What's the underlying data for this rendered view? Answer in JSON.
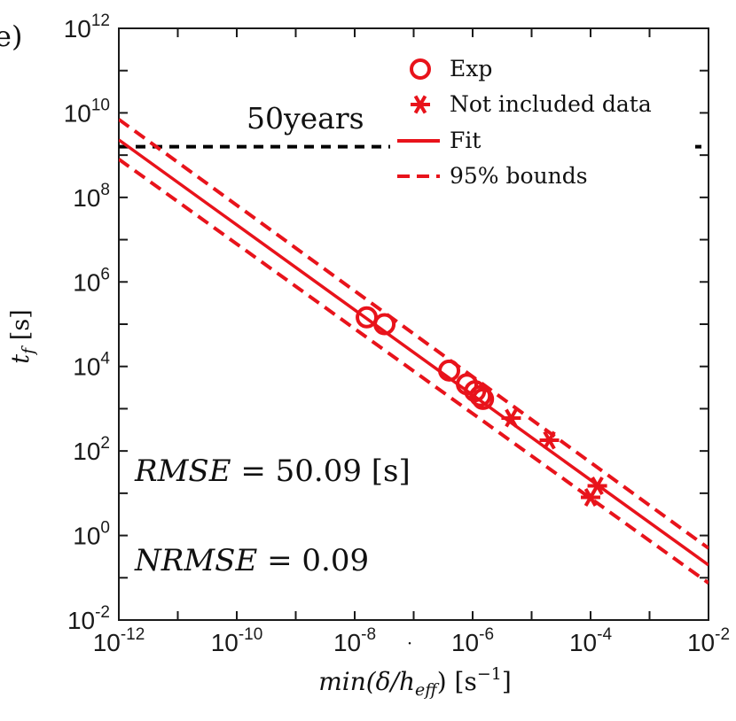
{
  "chart_data": {
    "type": "scatter",
    "panel_label": "e)",
    "xscale": "log",
    "yscale": "log",
    "xlim": [
      1e-12,
      0.01
    ],
    "ylim": [
      0.01,
      1000000000000.0
    ],
    "x_ticks": [
      {
        "base": "10",
        "exp": "-12"
      },
      {
        "base": "10",
        "exp": "-10"
      },
      {
        "base": "10",
        "exp": "-8"
      },
      {
        "base": "10",
        "exp": "-6"
      },
      {
        "base": "10",
        "exp": "-4"
      },
      {
        "base": "10",
        "exp": "-2"
      }
    ],
    "y_ticks": [
      {
        "base": "10",
        "exp": "-2"
      },
      {
        "base": "10",
        "exp": "0"
      },
      {
        "base": "10",
        "exp": "2"
      },
      {
        "base": "10",
        "exp": "4"
      },
      {
        "base": "10",
        "exp": "6"
      },
      {
        "base": "10",
        "exp": "8"
      },
      {
        "base": "10",
        "exp": "10"
      },
      {
        "base": "10",
        "exp": "12"
      }
    ],
    "xlabel": {
      "pre": "min(",
      "delta": "δ",
      "post": "/h",
      "sub": "eff",
      "close": ")",
      "unit_open": " [s",
      "unit_exp": "−1",
      "unit_close": "]"
    },
    "ylabel": {
      "var": "t",
      "sub": "f",
      "unit": " [s]"
    },
    "series": [
      {
        "name": "Exp",
        "marker": "circle",
        "color": "#e8131b",
        "points": [
          [
            1.6e-08,
            145000.0
          ],
          [
            3.2e-08,
            100000.0
          ],
          [
            4e-07,
            8000.0
          ],
          [
            8e-07,
            3800.0
          ],
          [
            1.1e-06,
            2600.0
          ],
          [
            1.35e-06,
            2000.0
          ],
          [
            1.5e-06,
            1700.0
          ]
        ]
      },
      {
        "name": "Not included data",
        "marker": "asterisk",
        "color": "#e8131b",
        "points": [
          [
            4.5e-06,
            600.0
          ],
          [
            2e-05,
            180.0
          ],
          [
            0.0001,
            8.0
          ],
          [
            0.00013,
            15.0
          ]
        ]
      },
      {
        "name": "Fit",
        "style": "solid",
        "color": "#e8131b",
        "points": [
          [
            1e-12,
            2300000000.0
          ],
          [
            0.01,
            0.2
          ]
        ]
      },
      {
        "name": "95% bounds",
        "style": "dashed",
        "color": "#e8131b",
        "upper": [
          [
            1e-12,
            7000000000.0
          ],
          [
            0.01,
            0.5
          ]
        ],
        "lower": [
          [
            1e-12,
            800000000.0
          ],
          [
            0.01,
            0.075
          ]
        ]
      }
    ],
    "reference_line": {
      "label": "50years",
      "y": 1580000000.0,
      "color": "#000000"
    },
    "annotations": [
      {
        "var": "RMSE",
        "rest": " = 50.09 [s]"
      },
      {
        "var": "NRMSE",
        "rest": " = 0.09"
      }
    ],
    "legend_position": "top-right"
  }
}
